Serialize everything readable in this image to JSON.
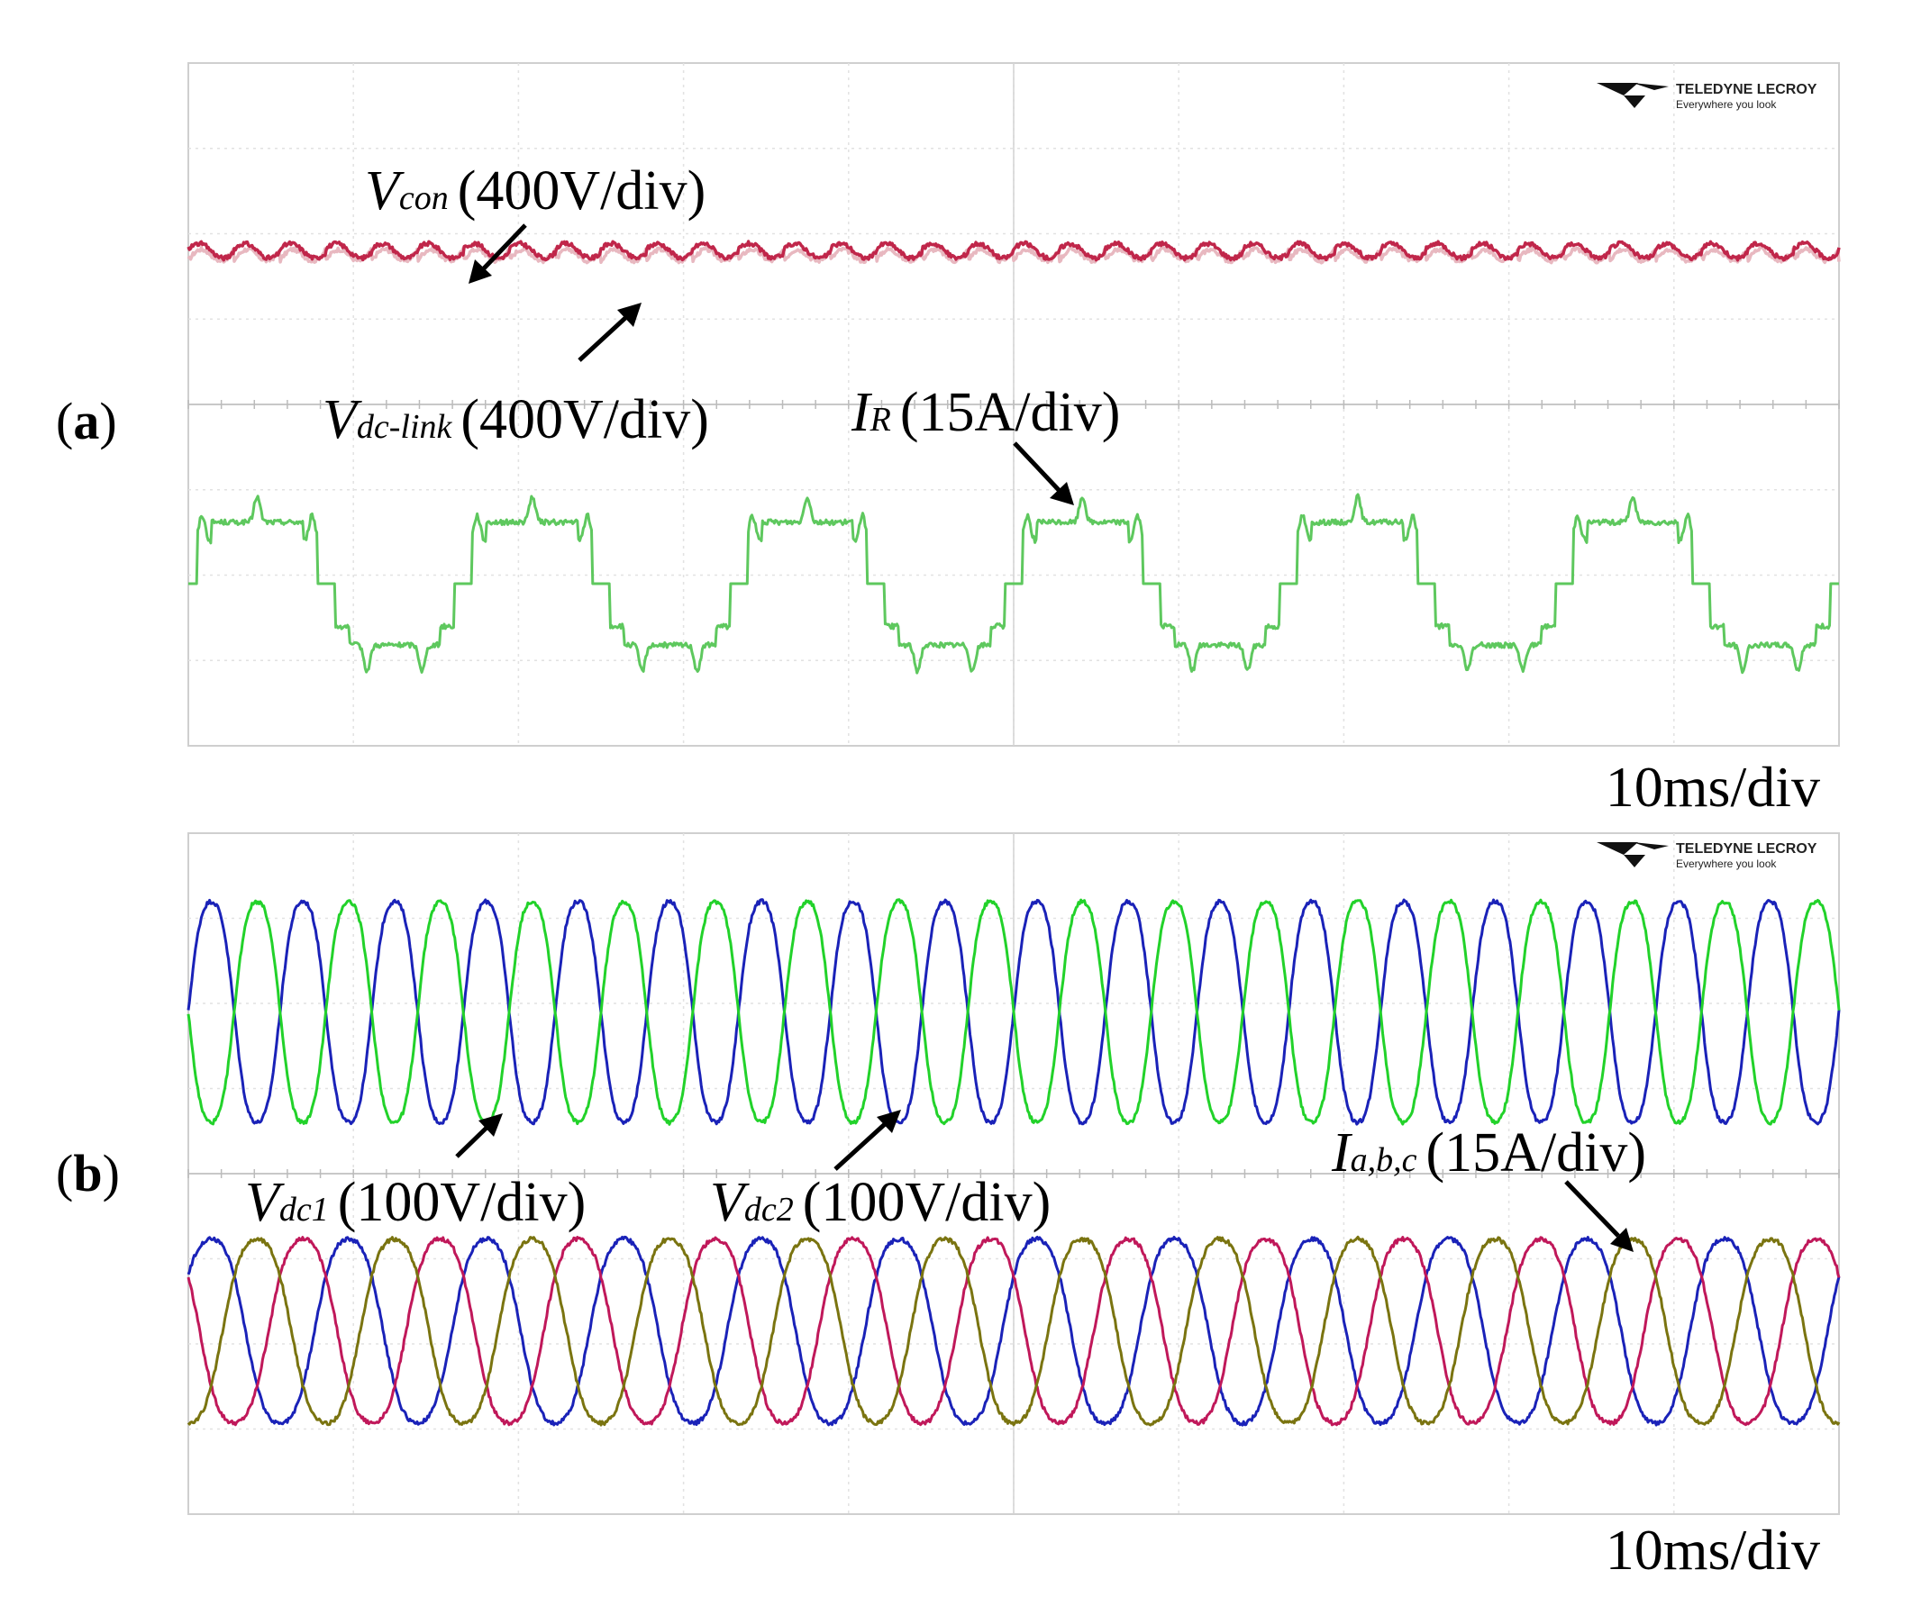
{
  "chart_data": [
    {
      "type": "line",
      "panel_label": "(a)",
      "panel_letter": "a",
      "time_per_div": "10ms/div",
      "brand": {
        "name": "TELEDYNE LECROY",
        "tagline": "Everywhere you look"
      },
      "annotations": [
        {
          "symbol": "V",
          "sub": "con",
          "text": "(400V/div)"
        },
        {
          "symbol": "V",
          "sub": "dc-link",
          "text": "(400V/div)"
        },
        {
          "symbol": "I",
          "sub": "R",
          "text": "(15A/div)"
        }
      ],
      "series": [
        {
          "name": "Vcon",
          "color": "#e8b8c0",
          "shape": "ripple",
          "level_div": 1.75,
          "ripple_div": 0.16,
          "periods": 36
        },
        {
          "name": "Vdc-link",
          "color": "#c0264a",
          "shape": "ripple",
          "level_div": 1.8,
          "ripple_div": 0.12,
          "periods": 36
        },
        {
          "name": "IR",
          "color": "#5ec85e",
          "shape": "multilevel",
          "level_div": -2.1,
          "amplitude_div": 1.0,
          "periods": 6
        }
      ]
    },
    {
      "type": "line",
      "panel_label": "(b)",
      "panel_letter": "b",
      "time_per_div": "10ms/div",
      "brand": {
        "name": "TELEDYNE LECROY",
        "tagline": "Everywhere you look"
      },
      "annotations": [
        {
          "symbol": "V",
          "sub": "dc1",
          "text": "(100V/div)"
        },
        {
          "symbol": "V",
          "sub": "dc2",
          "text": "(100V/div)"
        },
        {
          "symbol": "I",
          "sub": "a,b,c",
          "text": "(15A/div)"
        }
      ],
      "series": [
        {
          "name": "Vdc1",
          "color": "#1a22b8",
          "shape": "sine",
          "level_div": 1.9,
          "amplitude_div": 1.38,
          "periods": 18,
          "phase_deg": 0
        },
        {
          "name": "Vdc2",
          "color": "#22d22a",
          "shape": "sine",
          "level_div": 1.9,
          "amplitude_div": 1.38,
          "periods": 18,
          "phase_deg": 180
        },
        {
          "name": "Ia",
          "color": "#1a22b8",
          "shape": "sine",
          "level_div": -1.85,
          "amplitude_div": 1.15,
          "periods": 12,
          "phase_deg": 30
        },
        {
          "name": "Ib",
          "color": "#c0185a",
          "shape": "sine",
          "level_div": -1.85,
          "amplitude_div": 1.15,
          "periods": 12,
          "phase_deg": 150
        },
        {
          "name": "Ic",
          "color": "#7a7410",
          "shape": "sine",
          "level_div": -1.85,
          "amplitude_div": 1.15,
          "periods": 12,
          "phase_deg": 270
        }
      ]
    }
  ]
}
